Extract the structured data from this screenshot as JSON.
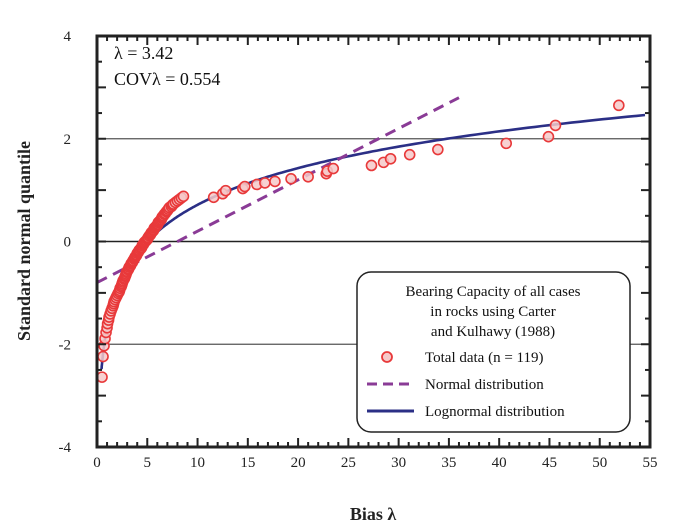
{
  "chart_data": {
    "type": "scatter",
    "xlabel": "Bias λ",
    "ylabel": "Standard normal quantile",
    "xlim": [
      0,
      55
    ],
    "ylim": [
      -4,
      4
    ],
    "x_ticks": [
      "0",
      "5",
      "10",
      "15",
      "20",
      "25",
      "30",
      "35",
      "40",
      "45",
      "50",
      "55"
    ],
    "x_tick_values": [
      0,
      5,
      10,
      15,
      20,
      25,
      30,
      35,
      40,
      45,
      50,
      55
    ],
    "y_ticks": [
      "4",
      "2",
      "0",
      "-2",
      "-4"
    ],
    "y_tick_values": [
      4,
      2,
      0,
      -2,
      -4
    ],
    "gridlines_y": [
      2,
      0,
      -2
    ],
    "annotations": [
      "λ = 3.42",
      "COVλ = 0.554"
    ],
    "legend": {
      "placement": "bottom-right",
      "title_lines": [
        "Bearing Capacity of all cases",
        "in rocks using Carter",
        "and Kulhawy (1988)"
      ],
      "entries": [
        "Total data (n = 119)",
        "Normal distribution",
        "Lognormal distribution"
      ]
    },
    "series": [
      {
        "name": "Total data (n = 119)",
        "kind": "scatter",
        "color": "#e8393a",
        "fill": "#f6c9c9",
        "x": [
          0.5,
          0.6,
          0.7,
          0.8,
          0.9,
          1.0,
          1.05,
          1.15,
          1.2,
          1.3,
          1.4,
          1.5,
          1.6,
          1.65,
          1.7,
          1.8,
          1.9,
          2.0,
          2.1,
          2.2,
          2.25,
          2.3,
          2.4,
          2.45,
          2.5,
          2.55,
          2.6,
          2.7,
          2.75,
          2.8,
          2.85,
          2.9,
          2.95,
          3.0,
          3.1,
          3.15,
          3.2,
          3.3,
          3.35,
          3.4,
          3.5,
          3.55,
          3.6,
          3.7,
          3.75,
          3.8,
          3.9,
          3.95,
          4.0,
          4.1,
          4.15,
          4.2,
          4.3,
          4.4,
          4.45,
          4.5,
          4.6,
          4.65,
          4.7,
          4.8,
          4.9,
          5.0,
          5.05,
          5.1,
          5.2,
          5.3,
          5.35,
          5.4,
          5.5,
          5.6,
          5.65,
          5.7,
          5.8,
          5.9,
          6.0,
          6.05,
          6.1,
          6.2,
          6.3,
          6.4,
          6.45,
          6.5,
          6.6,
          6.7,
          6.8,
          6.9,
          7.0,
          7.1,
          7.2,
          7.4,
          7.5,
          7.6,
          7.8,
          8.0,
          8.2,
          8.4,
          8.6,
          11.6,
          12.5,
          12.8,
          14.5,
          14.7,
          15.9,
          16.7,
          17.7,
          19.3,
          21.0,
          22.8,
          22.9,
          23.5,
          27.3,
          28.5,
          29.2,
          31.1,
          33.9,
          40.7,
          44.9,
          45.6,
          51.9
        ],
        "y": [
          -2.64,
          -2.24,
          -2.03,
          -1.89,
          -1.77,
          -1.68,
          -1.6,
          -1.53,
          -1.47,
          -1.41,
          -1.35,
          -1.3,
          -1.25,
          -1.21,
          -1.17,
          -1.13,
          -1.09,
          -1.05,
          -1.01,
          -0.98,
          -0.95,
          -0.91,
          -0.88,
          -0.85,
          -0.82,
          -0.79,
          -0.76,
          -0.73,
          -0.71,
          -0.68,
          -0.66,
          -0.63,
          -0.6,
          -0.58,
          -0.55,
          -0.53,
          -0.5,
          -0.48,
          -0.46,
          -0.43,
          -0.41,
          -0.39,
          -0.37,
          -0.34,
          -0.32,
          -0.3,
          -0.28,
          -0.26,
          -0.23,
          -0.21,
          -0.19,
          -0.17,
          -0.15,
          -0.13,
          -0.11,
          -0.08,
          -0.06,
          -0.04,
          -0.02,
          0,
          0.02,
          0.04,
          0.06,
          0.08,
          0.11,
          0.13,
          0.15,
          0.17,
          0.19,
          0.21,
          0.23,
          0.26,
          0.28,
          0.3,
          0.32,
          0.34,
          0.37,
          0.39,
          0.41,
          0.43,
          0.46,
          0.48,
          0.5,
          0.53,
          0.55,
          0.58,
          0.6,
          0.63,
          0.66,
          0.68,
          0.71,
          0.73,
          0.76,
          0.79,
          0.82,
          0.85,
          0.88,
          0.86,
          0.93,
          0.99,
          1.03,
          1.07,
          1.11,
          1.14,
          1.17,
          1.22,
          1.26,
          1.32,
          1.37,
          1.42,
          1.48,
          1.54,
          1.61,
          1.69,
          1.79,
          1.91,
          2.04,
          2.26,
          2.65
        ]
      },
      {
        "name": "Normal distribution",
        "kind": "line",
        "style": "dashed",
        "color": "#8a3b96",
        "x": [
          0,
          36
        ],
        "y": [
          -0.8,
          2.8
        ]
      },
      {
        "name": "Lognormal distribution",
        "kind": "curve",
        "color": "#2b2f86",
        "mu_ln": 1.61,
        "sigma_ln": 0.97,
        "x_range": [
          0.45,
          54.5
        ]
      }
    ]
  }
}
